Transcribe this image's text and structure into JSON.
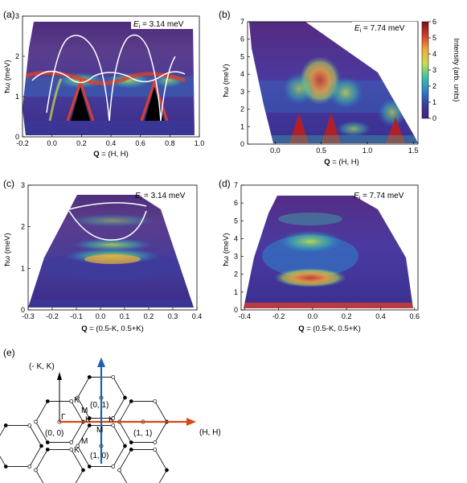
{
  "panels": {
    "a": {
      "label": "(a)",
      "energy_prefix": "E",
      "energy_sub": "i",
      "energy_value": " = 3.14 meV",
      "xlabel_bold": "Q",
      "xlabel_rest": " = (H, H)",
      "ylabel": "ħω (meV)",
      "xticks": [
        "-0.2",
        "0.0",
        "0.2",
        "0.4",
        "0.6",
        "0.8",
        "1.0"
      ],
      "yticks": [
        "0",
        "1",
        "2",
        "3"
      ]
    },
    "b": {
      "label": "(b)",
      "energy_prefix": "E",
      "energy_sub": "i",
      "energy_value": " = 7.74 meV",
      "xlabel_bold": "Q",
      "xlabel_rest": " = (H, H)",
      "ylabel": "ħω (meV)",
      "xticks": [
        "0.0",
        "0.5",
        "1.0",
        "1.5"
      ],
      "yticks": [
        "0",
        "1",
        "2",
        "3",
        "4",
        "5",
        "6",
        "7"
      ]
    },
    "c": {
      "label": "(c)",
      "energy_prefix": "E",
      "energy_sub": "i",
      "energy_value": " = 3.14 meV",
      "xlabel_bold": "Q",
      "xlabel_rest": " = (0.5-K, 0.5+K)",
      "ylabel": "ħω (meV)",
      "xticks": [
        "-0.3",
        "-0.2",
        "-0.1",
        "0.0",
        "0.1",
        "0.2",
        "0.3",
        "0.4"
      ],
      "yticks": [
        "0",
        "1",
        "2",
        "3"
      ]
    },
    "d": {
      "label": "(d)",
      "energy_prefix": "E",
      "energy_sub": "i",
      "energy_value": " = 7.74 meV",
      "xlabel_bold": "Q",
      "xlabel_rest": " = (0.5-K, 0.5+K)",
      "ylabel": "ħω (meV)",
      "xticks": [
        "-0.4",
        "-0.2",
        "0.0",
        "0.2",
        "0.4",
        "0.6"
      ],
      "yticks": [
        "0",
        "1",
        "2",
        "3",
        "4",
        "5",
        "6",
        "7"
      ]
    },
    "e": {
      "label": "(e)",
      "axis_up": "(- K, K)",
      "axis_right": "(H, H)",
      "gamma": "Γ",
      "origin": "(0, 0)",
      "pt01": "(0, 1)",
      "pt11": "(1, 1)",
      "pt10": "(1, 0)",
      "k": "K",
      "m": "M"
    }
  },
  "colorbar": {
    "label": "Intensity (arb. units)",
    "ticks": [
      "0",
      "1",
      "2",
      "3",
      "4",
      "5",
      "6"
    ],
    "colors": [
      "#4a1f7a",
      "#3a3c9c",
      "#2f7fc9",
      "#3bbfa8",
      "#c8e04a",
      "#f3a93a",
      "#d8402a",
      "#7a0f16"
    ]
  },
  "chart_data": [
    {
      "type": "heatmap",
      "title": "E_i = 3.14 meV",
      "xlabel": "Q = (H, H)",
      "ylabel": "ħω (meV)",
      "xlim": [
        -0.2,
        1.0
      ],
      "ylim": [
        0,
        3
      ]
    },
    {
      "type": "heatmap",
      "title": "E_i = 7.74 meV",
      "xlabel": "Q = (H, H)",
      "ylabel": "ħω (meV)",
      "xlim": [
        -0.3,
        1.55
      ],
      "ylim": [
        0,
        7
      ]
    },
    {
      "type": "heatmap",
      "title": "E_i = 3.14 meV",
      "xlabel": "Q = (0.5-K, 0.5+K)",
      "ylabel": "ħω (meV)",
      "xlim": [
        -0.3,
        0.4
      ],
      "ylim": [
        0,
        3
      ]
    },
    {
      "type": "heatmap",
      "title": "E_i = 7.74 meV",
      "xlabel": "Q = (0.5-K, 0.5+K)",
      "ylabel": "ħω (meV)",
      "xlim": [
        -0.42,
        0.62
      ],
      "ylim": [
        0,
        7
      ]
    }
  ]
}
